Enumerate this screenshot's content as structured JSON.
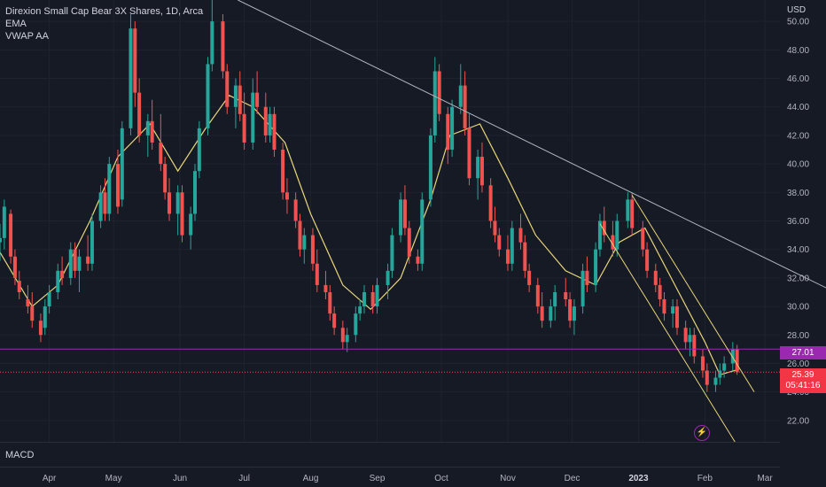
{
  "header": {
    "symbol_title": "Direxion Small Cap Bear 3X Shares, 1D, Arca",
    "indicator_1": "EMA",
    "indicator_2": "VWAP AA"
  },
  "price_axis": {
    "currency": "USD",
    "ticks": [
      "50.00",
      "48.00",
      "46.00",
      "44.00",
      "42.00",
      "40.00",
      "38.00",
      "36.00",
      "34.00",
      "32.00",
      "30.00",
      "28.00",
      "26.00",
      "24.00",
      "22.00"
    ]
  },
  "time_axis": {
    "labels": [
      "Apr",
      "May",
      "Jun",
      "Jul",
      "Aug",
      "Sep",
      "Oct",
      "Nov",
      "Dec",
      "2023",
      "Feb",
      "Mar"
    ]
  },
  "tags": {
    "level_price": "27.01",
    "last_price": "25.39",
    "countdown": "05:41:16"
  },
  "lower_pane": {
    "label": "MACD"
  },
  "colors": {
    "background": "#161a25",
    "up": "#26a69a",
    "down": "#ef5350",
    "ema": "#e8d57a",
    "level": "#9c27b0",
    "trendline": "#b2b5be"
  },
  "chart_data": {
    "type": "candlestick",
    "y_range": [
      20.5,
      51.5
    ],
    "x_range": [
      "2022-03-09",
      "2023-03-08"
    ],
    "horizontal_level": 27.01,
    "last_price": 25.39,
    "ema_points": [
      [
        "2022-03-09",
        33.8
      ],
      [
        "2022-03-24",
        30.0
      ],
      [
        "2022-04-05",
        31.5
      ],
      [
        "2022-04-20",
        36.0
      ],
      [
        "2022-05-03",
        40.5
      ],
      [
        "2022-05-18",
        42.8
      ],
      [
        "2022-05-31",
        39.5
      ],
      [
        "2022-06-13",
        42.5
      ],
      [
        "2022-06-24",
        44.8
      ],
      [
        "2022-07-05",
        44.0
      ],
      [
        "2022-07-20",
        41.5
      ],
      [
        "2022-08-01",
        36.5
      ],
      [
        "2022-08-16",
        31.5
      ],
      [
        "2022-08-29",
        29.8
      ],
      [
        "2022-09-12",
        32.0
      ],
      [
        "2022-09-26",
        37.5
      ],
      [
        "2022-10-05",
        42.0
      ],
      [
        "2022-10-19",
        42.8
      ],
      [
        "2022-11-01",
        39.0
      ],
      [
        "2022-11-14",
        35.0
      ],
      [
        "2022-11-28",
        32.5
      ],
      [
        "2022-12-12",
        31.5
      ],
      [
        "2022-12-23",
        34.5
      ],
      [
        "2023-01-04",
        35.5
      ],
      [
        "2023-01-18",
        31.5
      ],
      [
        "2023-02-01",
        27.5
      ],
      [
        "2023-02-08",
        25.2
      ],
      [
        "2023-02-17",
        25.6
      ]
    ],
    "trendline_1": {
      "from": [
        "2022-06-28",
        51.5
      ],
      "to": [
        "2023-03-31",
        31.2
      ]
    },
    "channel_upper": {
      "from": [
        "2022-12-29",
        37.8
      ],
      "to": [
        "2023-02-24",
        24.0
      ]
    },
    "channel_lower": {
      "from": [
        "2022-12-14",
        35.8
      ],
      "to": [
        "2023-02-15",
        20.5
      ]
    },
    "candles": [
      [
        "2022-03-09",
        34.5,
        35.8,
        33.2,
        34.8
      ],
      [
        "2022-03-11",
        34.8,
        37.5,
        34.0,
        37.0
      ],
      [
        "2022-03-14",
        36.5,
        36.8,
        33.0,
        33.5
      ],
      [
        "2022-03-16",
        33.5,
        34.0,
        31.5,
        32.0
      ],
      [
        "2022-03-18",
        31.8,
        32.5,
        30.5,
        31.0
      ],
      [
        "2022-03-22",
        30.5,
        31.5,
        29.5,
        30.0
      ],
      [
        "2022-03-24",
        30.0,
        31.0,
        28.5,
        29.0
      ],
      [
        "2022-03-28",
        29.0,
        29.5,
        27.5,
        28.0
      ],
      [
        "2022-03-30",
        28.5,
        30.5,
        28.0,
        30.0
      ],
      [
        "2022-04-01",
        30.0,
        31.5,
        29.5,
        31.0
      ],
      [
        "2022-04-05",
        31.0,
        33.0,
        30.5,
        32.5
      ],
      [
        "2022-04-07",
        32.5,
        33.5,
        31.5,
        32.0
      ],
      [
        "2022-04-11",
        32.0,
        34.5,
        31.5,
        34.0
      ],
      [
        "2022-04-13",
        34.0,
        34.5,
        32.0,
        32.5
      ],
      [
        "2022-04-15",
        32.5,
        34.0,
        31.0,
        33.5
      ],
      [
        "2022-04-19",
        33.5,
        35.0,
        32.5,
        33.0
      ],
      [
        "2022-04-21",
        33.0,
        36.5,
        32.5,
        36.0
      ],
      [
        "2022-04-25",
        36.0,
        38.5,
        35.5,
        38.0
      ],
      [
        "2022-04-27",
        38.0,
        39.0,
        36.0,
        36.5
      ],
      [
        "2022-04-29",
        36.5,
        40.5,
        36.0,
        40.0
      ],
      [
        "2022-05-03",
        40.0,
        41.0,
        36.5,
        37.0
      ],
      [
        "2022-05-05",
        37.5,
        43.0,
        37.0,
        42.5
      ],
      [
        "2022-05-09",
        42.5,
        50.5,
        42.0,
        49.5
      ],
      [
        "2022-05-11",
        49.5,
        50.0,
        44.0,
        45.0
      ],
      [
        "2022-05-13",
        45.0,
        46.0,
        41.5,
        42.0
      ],
      [
        "2022-05-17",
        42.0,
        43.5,
        40.5,
        43.0
      ],
      [
        "2022-05-19",
        43.0,
        44.5,
        41.0,
        41.5
      ],
      [
        "2022-05-23",
        41.5,
        43.5,
        39.5,
        40.0
      ],
      [
        "2022-05-25",
        40.0,
        40.5,
        37.5,
        38.0
      ],
      [
        "2022-05-27",
        38.0,
        39.0,
        36.0,
        36.5
      ],
      [
        "2022-05-31",
        36.5,
        38.5,
        35.0,
        38.0
      ],
      [
        "2022-06-02",
        38.0,
        38.5,
        34.5,
        35.0
      ],
      [
        "2022-06-06",
        35.0,
        37.0,
        34.0,
        36.5
      ],
      [
        "2022-06-08",
        36.5,
        40.0,
        36.0,
        39.5
      ],
      [
        "2022-06-10",
        39.5,
        43.0,
        39.0,
        42.5
      ],
      [
        "2022-06-14",
        42.5,
        47.5,
        42.0,
        47.0
      ],
      [
        "2022-06-16",
        47.0,
        51.5,
        46.5,
        50.0
      ],
      [
        "2022-06-21",
        50.0,
        50.5,
        46.0,
        46.5
      ],
      [
        "2022-06-23",
        46.5,
        47.0,
        43.5,
        44.0
      ],
      [
        "2022-06-27",
        44.0,
        46.0,
        42.5,
        45.5
      ],
      [
        "2022-06-29",
        45.5,
        46.5,
        43.0,
        43.5
      ],
      [
        "2022-07-01",
        43.5,
        45.0,
        41.0,
        41.5
      ],
      [
        "2022-07-05",
        41.5,
        46.0,
        41.0,
        45.0
      ],
      [
        "2022-07-07",
        45.0,
        46.5,
        43.5,
        44.0
      ],
      [
        "2022-07-11",
        44.0,
        45.0,
        41.5,
        42.0
      ],
      [
        "2022-07-13",
        42.0,
        44.0,
        41.5,
        43.5
      ],
      [
        "2022-07-15",
        43.5,
        44.0,
        40.5,
        41.0
      ],
      [
        "2022-07-19",
        41.0,
        41.5,
        37.5,
        38.0
      ],
      [
        "2022-07-21",
        38.0,
        39.0,
        36.5,
        37.5
      ],
      [
        "2022-07-25",
        37.5,
        38.0,
        35.5,
        36.0
      ],
      [
        "2022-07-27",
        36.0,
        36.5,
        33.5,
        34.0
      ],
      [
        "2022-07-29",
        34.0,
        35.5,
        33.0,
        35.0
      ],
      [
        "2022-08-02",
        35.0,
        35.5,
        32.5,
        33.0
      ],
      [
        "2022-08-04",
        33.0,
        34.0,
        31.0,
        31.5
      ],
      [
        "2022-08-08",
        31.5,
        32.5,
        30.5,
        31.0
      ],
      [
        "2022-08-10",
        31.0,
        31.5,
        29.0,
        29.5
      ],
      [
        "2022-08-12",
        29.5,
        30.0,
        28.0,
        28.5
      ],
      [
        "2022-08-16",
        28.5,
        29.0,
        27.0,
        27.5
      ],
      [
        "2022-08-18",
        27.5,
        28.5,
        26.8,
        28.0
      ],
      [
        "2022-08-22",
        28.0,
        30.0,
        27.5,
        29.5
      ],
      [
        "2022-08-24",
        29.5,
        30.5,
        29.0,
        30.0
      ],
      [
        "2022-08-26",
        30.0,
        31.5,
        29.5,
        31.0
      ],
      [
        "2022-08-30",
        31.0,
        31.5,
        29.5,
        30.0
      ],
      [
        "2022-09-01",
        30.0,
        32.0,
        29.5,
        31.5
      ],
      [
        "2022-09-06",
        31.5,
        33.0,
        30.5,
        32.5
      ],
      [
        "2022-09-08",
        32.5,
        35.5,
        32.0,
        35.0
      ],
      [
        "2022-09-12",
        35.0,
        38.0,
        34.5,
        37.5
      ],
      [
        "2022-09-14",
        37.5,
        38.5,
        35.0,
        35.5
      ],
      [
        "2022-09-16",
        35.5,
        36.0,
        33.0,
        33.5
      ],
      [
        "2022-09-20",
        33.5,
        34.0,
        32.5,
        33.0
      ],
      [
        "2022-09-22",
        33.0,
        38.0,
        32.5,
        37.5
      ],
      [
        "2022-09-26",
        37.5,
        42.5,
        37.0,
        42.0
      ],
      [
        "2022-09-28",
        42.0,
        47.5,
        41.5,
        46.5
      ],
      [
        "2022-09-30",
        46.5,
        47.0,
        43.0,
        43.5
      ],
      [
        "2022-10-04",
        43.5,
        44.0,
        40.0,
        41.0
      ],
      [
        "2022-10-06",
        41.0,
        44.5,
        40.5,
        44.0
      ],
      [
        "2022-10-10",
        44.0,
        47.0,
        43.5,
        45.5
      ],
      [
        "2022-10-12",
        45.5,
        46.5,
        42.0,
        42.5
      ],
      [
        "2022-10-14",
        42.5,
        43.5,
        38.5,
        39.0
      ],
      [
        "2022-10-18",
        39.0,
        41.0,
        37.5,
        40.5
      ],
      [
        "2022-10-20",
        40.5,
        41.5,
        38.0,
        38.5
      ],
      [
        "2022-10-24",
        38.5,
        39.0,
        35.5,
        36.0
      ],
      [
        "2022-10-26",
        36.0,
        37.0,
        34.5,
        35.0
      ],
      [
        "2022-10-28",
        35.0,
        35.5,
        33.5,
        34.0
      ],
      [
        "2022-11-01",
        34.0,
        35.0,
        32.5,
        33.0
      ],
      [
        "2022-11-03",
        33.0,
        36.0,
        32.5,
        35.5
      ],
      [
        "2022-11-07",
        35.5,
        36.5,
        34.0,
        34.5
      ],
      [
        "2022-11-09",
        34.5,
        35.0,
        32.0,
        32.5
      ],
      [
        "2022-11-11",
        32.5,
        33.0,
        31.0,
        31.5
      ],
      [
        "2022-11-15",
        31.5,
        32.0,
        29.5,
        30.0
      ],
      [
        "2022-11-17",
        30.0,
        31.0,
        28.5,
        29.0
      ],
      [
        "2022-11-21",
        29.0,
        30.5,
        28.5,
        30.0
      ],
      [
        "2022-11-23",
        30.0,
        31.5,
        29.0,
        31.0
      ],
      [
        "2022-11-28",
        31.0,
        32.0,
        30.0,
        30.5
      ],
      [
        "2022-11-30",
        30.5,
        31.0,
        28.5,
        29.0
      ],
      [
        "2022-12-02",
        29.0,
        30.5,
        28.0,
        30.0
      ],
      [
        "2022-12-06",
        30.0,
        33.0,
        29.5,
        32.5
      ],
      [
        "2022-12-08",
        32.5,
        33.5,
        31.0,
        31.5
      ],
      [
        "2022-12-12",
        31.5,
        34.5,
        31.0,
        34.0
      ],
      [
        "2022-12-14",
        34.0,
        36.5,
        33.5,
        36.0
      ],
      [
        "2022-12-16",
        36.0,
        37.0,
        34.5,
        35.0
      ],
      [
        "2022-12-20",
        35.0,
        36.0,
        33.5,
        34.0
      ],
      [
        "2022-12-22",
        34.0,
        36.5,
        33.5,
        36.0
      ],
      [
        "2022-12-27",
        36.0,
        38.0,
        35.5,
        37.5
      ],
      [
        "2022-12-29",
        37.5,
        38.0,
        35.0,
        35.5
      ],
      [
        "2023-01-03",
        35.5,
        36.0,
        33.5,
        34.0
      ],
      [
        "2023-01-05",
        34.0,
        34.5,
        32.0,
        32.5
      ],
      [
        "2023-01-09",
        32.5,
        33.0,
        31.0,
        31.5
      ],
      [
        "2023-01-11",
        31.5,
        32.0,
        30.0,
        30.5
      ],
      [
        "2023-01-13",
        30.5,
        31.0,
        29.0,
        29.5
      ],
      [
        "2023-01-17",
        29.5,
        30.5,
        28.5,
        30.0
      ],
      [
        "2023-01-19",
        30.0,
        30.5,
        28.0,
        28.5
      ],
      [
        "2023-01-23",
        28.5,
        29.0,
        27.0,
        27.5
      ],
      [
        "2023-01-25",
        27.5,
        28.5,
        26.5,
        28.0
      ],
      [
        "2023-01-27",
        28.0,
        28.5,
        26.0,
        26.5
      ],
      [
        "2023-01-31",
        26.5,
        27.0,
        25.0,
        25.5
      ],
      [
        "2023-02-02",
        25.5,
        26.0,
        24.0,
        24.5
      ],
      [
        "2023-02-06",
        24.5,
        25.5,
        24.0,
        25.0
      ],
      [
        "2023-02-08",
        25.0,
        26.0,
        24.5,
        25.5
      ],
      [
        "2023-02-10",
        25.5,
        26.5,
        25.0,
        26.0
      ],
      [
        "2023-02-14",
        26.0,
        27.5,
        25.5,
        27.0
      ],
      [
        "2023-02-16",
        27.0,
        27.3,
        25.2,
        25.39
      ]
    ]
  }
}
